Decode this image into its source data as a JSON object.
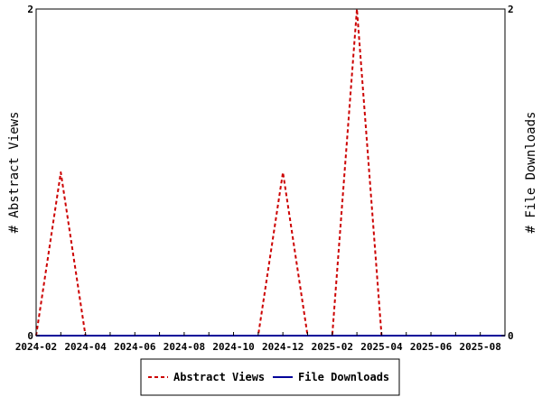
{
  "chart_data": {
    "type": "line",
    "title": "",
    "ylabel_left": "# Abstract Views",
    "ylabel_right": "# File Downloads",
    "y_range_left": [
      0,
      2
    ],
    "y_range_right": [
      0,
      2
    ],
    "y_ticks_left": [
      "0",
      "2"
    ],
    "y_ticks_right": [
      "0",
      "2"
    ],
    "x_range": [
      "2024-02-01",
      "2025-09-01"
    ],
    "x_tick_labels": [
      "2024-02",
      "2024-04",
      "2024-06",
      "2024-08",
      "2024-10",
      "2024-12",
      "2025-02",
      "2025-04",
      "2025-06",
      "2025-08"
    ],
    "grid": false,
    "legend": {
      "position": "bottom",
      "entries": [
        "Abstract Views",
        "File Downloads"
      ]
    },
    "series": [
      {
        "name": "Abstract Views",
        "color": "#cc0000",
        "style": "dashed",
        "axis": "left",
        "points": [
          {
            "x": "2024-02-01",
            "y": 0
          },
          {
            "x": "2024-03-01",
            "y": 1
          },
          {
            "x": "2024-04-01",
            "y": 0
          },
          {
            "x": "2024-11-01",
            "y": 0
          },
          {
            "x": "2024-12-01",
            "y": 1
          },
          {
            "x": "2025-01-01",
            "y": 0
          },
          {
            "x": "2025-02-01",
            "y": 0
          },
          {
            "x": "2025-03-01",
            "y": 2
          },
          {
            "x": "2025-04-01",
            "y": 0
          },
          {
            "x": "2025-09-01",
            "y": 0
          }
        ]
      },
      {
        "name": "File Downloads",
        "color": "#000099",
        "style": "solid",
        "axis": "right",
        "points": [
          {
            "x": "2024-02-01",
            "y": 0
          },
          {
            "x": "2025-09-01",
            "y": 0
          }
        ]
      }
    ]
  }
}
